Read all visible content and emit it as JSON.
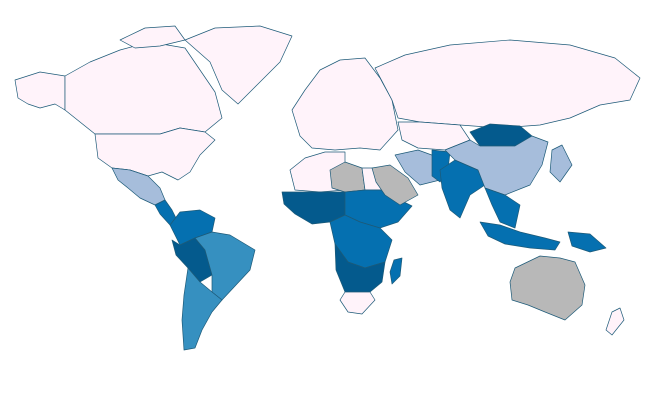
{
  "map": {
    "class_colors": [
      "#fff3fa",
      "#a6bddb",
      "#3690c0",
      "#0570b0",
      "#045a8d"
    ],
    "no_data_color": "#b8b8b8",
    "border_color": "#1d5a78"
  }
}
